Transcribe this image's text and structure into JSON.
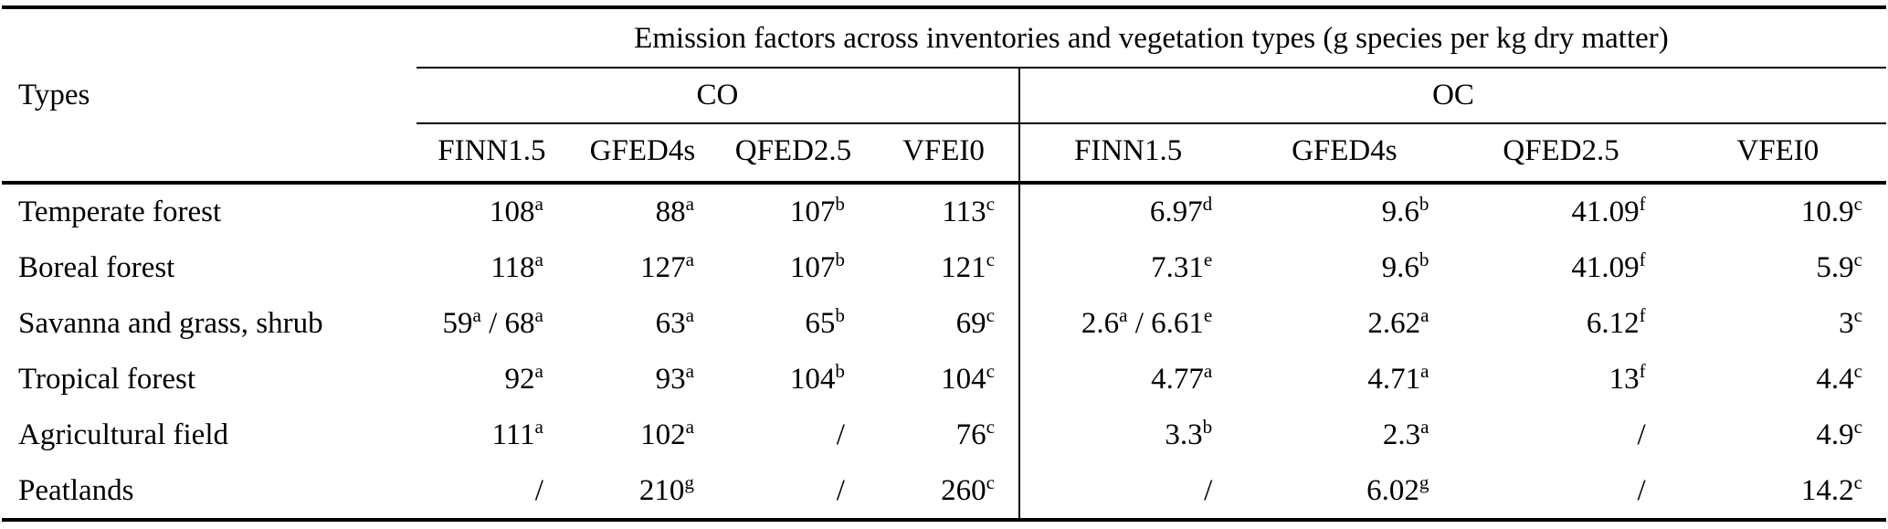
{
  "table": {
    "title": "Emission factors across inventories and vegetation types (g species per kg dry matter)",
    "row_header_label": "Types",
    "groups": [
      {
        "label": "CO",
        "columns": [
          "FINN1.5",
          "GFED4s",
          "QFED2.5",
          "VFEI0"
        ]
      },
      {
        "label": "OC",
        "columns": [
          "FINN1.5",
          "GFED4s",
          "QFED2.5",
          "VFEI0"
        ]
      }
    ],
    "missing_marker": "/",
    "rows": [
      {
        "type": "Temperate forest",
        "values": [
          "108^a",
          "88^a",
          "107^b",
          "113^c",
          "6.97^d",
          "9.6^b",
          "41.09^f",
          "10.9^c"
        ]
      },
      {
        "type": "Boreal forest",
        "values": [
          "118^a",
          "127^a",
          "107^b",
          "121^c",
          "7.31^e",
          "9.6^b",
          "41.09^f",
          "5.9^c"
        ]
      },
      {
        "type": "Savanna and grass, shrub",
        "values": [
          "59^a / 68^a",
          "63^a",
          "65^b",
          "69^c",
          "2.6^a / 6.61^e",
          "2.62^a",
          "6.12^f",
          "3^c"
        ]
      },
      {
        "type": "Tropical forest",
        "values": [
          "92^a",
          "93^a",
          "104^b",
          "104^c",
          "4.77^a",
          "4.71^a",
          "13^f",
          "4.4^c"
        ]
      },
      {
        "type": "Agricultural field",
        "values": [
          "111^a",
          "102^a",
          "/",
          "76^c",
          "3.3^b",
          "2.3^a",
          "/",
          "4.9^c"
        ]
      },
      {
        "type": "Peatlands",
        "values": [
          "/",
          "210^g",
          "/",
          "260^c",
          "/",
          "6.02^g",
          "/",
          "14.2^c"
        ]
      }
    ]
  }
}
